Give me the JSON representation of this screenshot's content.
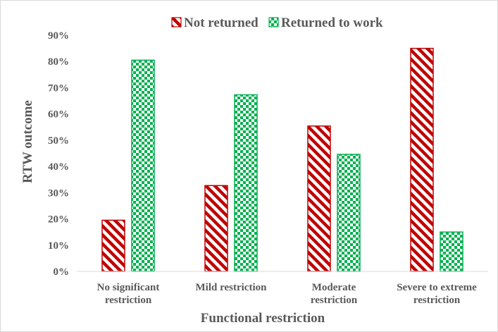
{
  "chart_data": {
    "type": "bar",
    "categories": [
      [
        "No significant",
        "restriction"
      ],
      [
        "Mild restriction"
      ],
      [
        "Moderate",
        "restriction"
      ],
      [
        "Severe to extreme",
        "restriction"
      ]
    ],
    "series": [
      {
        "name": "Not returned",
        "values": [
          19.5,
          32.7,
          55.4,
          85.0
        ],
        "color": "#c00000",
        "pattern": "diagonal-stripes"
      },
      {
        "name": "Returned to work",
        "values": [
          80.5,
          67.3,
          44.6,
          15.0
        ],
        "color": "#00b050",
        "pattern": "checkerboard"
      }
    ],
    "xlabel": "Functional restriction",
    "ylabel": "RTW outcome",
    "ylim": [
      0,
      90
    ],
    "yticks": [
      0,
      10,
      20,
      30,
      40,
      50,
      60,
      70,
      80,
      90
    ],
    "ytick_format": "percent",
    "grid": false,
    "legend_position": "top"
  }
}
